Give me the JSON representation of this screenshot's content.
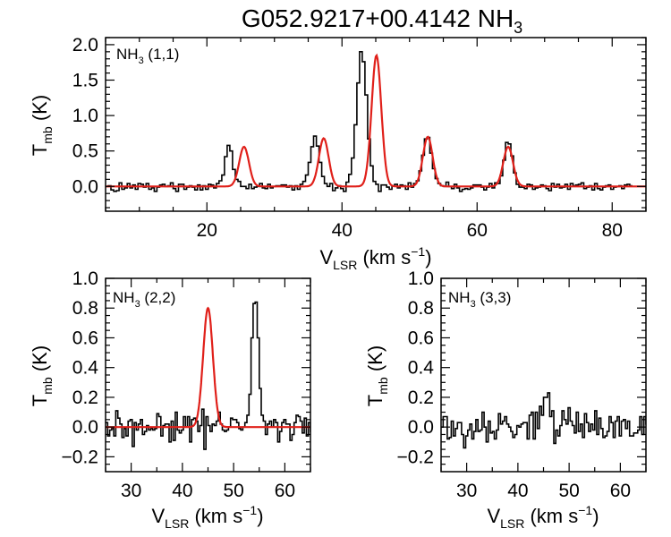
{
  "figure": {
    "title_main": "G052.9217+00.4142 NH",
    "title_sub": "3"
  },
  "colors": {
    "data": "#000000",
    "fit": "#e0201a",
    "frame": "#000000"
  },
  "chart_data": [
    {
      "type": "line",
      "panel_label": {
        "main": "NH",
        "sub": "3",
        "rest": " (1,1)"
      },
      "xlabel": {
        "main": "V",
        "sub": "LSR",
        "rest": " (km s",
        "sup": "−1",
        "close": ")"
      },
      "ylabel": {
        "main": "T",
        "sub": "mb",
        "rest": " (K)"
      },
      "xlim": [
        5,
        85
      ],
      "ylim": [
        -0.35,
        2.1
      ],
      "xticks": [
        20,
        40,
        60,
        80
      ],
      "xtick_labels": [
        "20",
        "40",
        "60",
        "80"
      ],
      "yticks": [
        0.0,
        0.5,
        1.0,
        1.5,
        2.0
      ],
      "ytick_labels": [
        "0.0",
        "0.5",
        "1.0",
        "1.5",
        "2.0"
      ],
      "grid": false,
      "series": [
        {
          "style": "step",
          "color": "#000000",
          "x_start": 5.0,
          "x_step": 0.4,
          "values": [
            0.0,
            0.01,
            -0.05,
            -0.07,
            -0.06,
            0.05,
            -0.04,
            -0.02,
            0.04,
            -0.02,
            0.02,
            -0.04,
            0.04,
            0.03,
            -0.01,
            0.04,
            -0.04,
            -0.02,
            -0.07,
            -0.01,
            0.02,
            0.03,
            -0.0,
            0.01,
            0.05,
            -0.03,
            -0.07,
            0.03,
            0.03,
            -0.04,
            -0.01,
            0.01,
            -0.01,
            -0.05,
            0.02,
            -0.05,
            0.01,
            -0.04,
            0.03,
            0.02,
            -0.02,
            0.04,
            0.08,
            0.16,
            0.42,
            0.58,
            0.5,
            0.24,
            0.1,
            0.07,
            -0.0,
            -0.0,
            -0.03,
            0.03,
            -0.03,
            -0.01,
            0.0,
            0.04,
            -0.02,
            -0.03,
            0.03,
            -0.02,
            0.0,
            0.01,
            0.01,
            0.02,
            0.02,
            -0.01,
            0.01,
            -0.05,
            0.01,
            -0.04,
            0.03,
            0.07,
            0.16,
            0.34,
            0.56,
            0.71,
            0.57,
            0.34,
            0.14,
            0.04,
            -0.0,
            0.04,
            -0.06,
            -0.02,
            0.01,
            -0.03,
            -0.07,
            0.06,
            0.17,
            0.4,
            0.87,
            1.46,
            1.9,
            1.76,
            1.29,
            0.67,
            0.29,
            0.07,
            0.03,
            -0.07,
            0.02,
            0.02,
            -0.01,
            -0.04,
            0.01,
            0.03,
            -0.02,
            0.02,
            0.01,
            -0.04,
            0.05,
            -0.01,
            0.04,
            0.08,
            0.22,
            0.44,
            0.67,
            0.69,
            0.47,
            0.25,
            0.11,
            0.04,
            0.01,
            -0.0,
            0.06,
            0.0,
            -0.03,
            0.03,
            -0.02,
            -0.07,
            -0.04,
            -0.03,
            -0.04,
            -0.02,
            0.02,
            0.02,
            0.02,
            -0.01,
            -0.05,
            -0.01,
            0.04,
            -0.02,
            0.05,
            0.04,
            0.15,
            0.37,
            0.62,
            0.6,
            0.43,
            0.19,
            0.03,
            -0.01,
            -0.01,
            -0.03,
            0.03,
            0.02,
            -0.04,
            -0.02,
            -0.01,
            0.02,
            0.01,
            -0.03,
            -0.06,
            0.04,
            -0.01,
            0.03,
            -0.02,
            -0.01,
            0.03,
            -0.04,
            0.04,
            0.01,
            0.02,
            0.03,
            0.05,
            -0.03,
            -0.01,
            0.01,
            -0.05,
            0.04,
            -0.03,
            -0.05,
            -0.01,
            0.01,
            0.02,
            -0.04,
            -0.01,
            0.0,
            0.01,
            -0.03,
            0.02,
            0.03,
            0.01
          ]
        },
        {
          "style": "gaussian",
          "color": "#e0201a",
          "baseline": 0.0,
          "components": [
            {
              "center": 25.5,
              "amp": 0.56,
              "sigma": 0.72
            },
            {
              "center": 37.3,
              "amp": 0.68,
              "sigma": 0.72
            },
            {
              "center": 45.1,
              "amp": 1.85,
              "sigma": 0.72
            },
            {
              "center": 52.7,
              "amp": 0.7,
              "sigma": 0.72
            },
            {
              "center": 64.6,
              "amp": 0.56,
              "sigma": 0.72
            }
          ]
        }
      ]
    },
    {
      "type": "line",
      "panel_label": {
        "main": "NH",
        "sub": "3",
        "rest": " (2,2)"
      },
      "xlabel": {
        "main": "V",
        "sub": "LSR",
        "rest": " (km s",
        "sup": "−1",
        "close": ")"
      },
      "ylabel": {
        "main": "T",
        "sub": "mb",
        "rest": " (K)"
      },
      "xlim": [
        25,
        65
      ],
      "ylim": [
        -0.3,
        1.0
      ],
      "xticks": [
        30,
        40,
        50,
        60
      ],
      "xtick_labels": [
        "30",
        "40",
        "50",
        "60"
      ],
      "yticks": [
        -0.2,
        0.0,
        0.2,
        0.4,
        0.6,
        0.8,
        1.0
      ],
      "ytick_labels": [
        "−0.2",
        "0.0",
        "0.2",
        "0.4",
        "0.6",
        "0.8",
        "1.0"
      ],
      "grid": false,
      "series": [
        {
          "style": "step",
          "color": "#000000",
          "x_start": 25.0,
          "x_step": 0.4,
          "values": [
            0.03,
            -0.06,
            -0.02,
            -0.01,
            -0.06,
            0.11,
            0.06,
            0.02,
            -0.07,
            -0.01,
            -0.06,
            0.04,
            0.05,
            -0.13,
            0.03,
            -0.02,
            0.02,
            0.05,
            -0.05,
            -0.03,
            0.01,
            -0.02,
            -0.01,
            -0.02,
            -0.01,
            0.09,
            0.07,
            -0.06,
            0.01,
            0.02,
            0.02,
            -0.1,
            0.04,
            -0.09,
            0.1,
            -0.02,
            -0.04,
            -0.02,
            0.07,
            0.0,
            0.07,
            -0.1,
            0.05,
            0.06,
            0.04,
            -0.03,
            0.01,
            0.12,
            -0.15,
            0.07,
            0.01,
            -0.03,
            0.02,
            0.01,
            0.04,
            0.1,
            0.02,
            -0.02,
            -0.03,
            -0.02,
            0.0,
            0.06,
            0.05,
            0.05,
            0.03,
            -0.01,
            -0.02,
            -0.0,
            0.03,
            0.08,
            0.22,
            0.6,
            0.83,
            0.84,
            0.6,
            0.26,
            0.08,
            0.04,
            -0.05,
            0.02,
            0.04,
            -0.0,
            0.05,
            0.03,
            -0.1,
            -0.03,
            0.03,
            0.05,
            0.02,
            0.02,
            -0.09,
            -0.05,
            0.03,
            0.08,
            0.07,
            0.04,
            -0.04,
            0.06,
            -0.06,
            0.03,
            -0.03,
            0.01
          ]
        },
        {
          "style": "gaussian",
          "color": "#e0201a",
          "baseline": 0.0,
          "components": [
            {
              "center": 45.0,
              "amp": 0.8,
              "sigma": 0.95
            }
          ]
        }
      ]
    },
    {
      "type": "line",
      "panel_label": {
        "main": "NH",
        "sub": "3",
        "rest": " (3,3)"
      },
      "xlabel": {
        "main": "V",
        "sub": "LSR",
        "rest": " (km s",
        "sup": "−1",
        "close": ")"
      },
      "ylabel": {
        "main": "T",
        "sub": "mb",
        "rest": " (K)"
      },
      "xlim": [
        25,
        65
      ],
      "ylim": [
        -0.3,
        1.0
      ],
      "xticks": [
        30,
        40,
        50,
        60
      ],
      "xtick_labels": [
        "30",
        "40",
        "50",
        "60"
      ],
      "yticks": [
        -0.2,
        0.0,
        0.2,
        0.4,
        0.6,
        0.8,
        1.0
      ],
      "ytick_labels": [
        "−0.2",
        "0.0",
        "0.2",
        "0.4",
        "0.6",
        "0.8",
        "1.0"
      ],
      "grid": false,
      "series": [
        {
          "style": "step",
          "color": "#000000",
          "x_start": 25.0,
          "x_step": 0.4,
          "values": [
            -0.0,
            0.07,
            0.07,
            -0.08,
            -0.07,
            0.04,
            -0.06,
            -0.01,
            0.03,
            0.03,
            -0.05,
            -0.14,
            -0.06,
            -0.02,
            0.02,
            -0.08,
            -0.03,
            0.05,
            -0.03,
            -0.02,
            0.1,
            -0.0,
            -0.1,
            0.04,
            -0.04,
            -0.03,
            -0.08,
            -0.02,
            0.09,
            0.02,
            0.04,
            0.07,
            0.02,
            0.0,
            -0.03,
            -0.07,
            -0.05,
            0.01,
            -0.0,
            0.02,
            0.03,
            0.03,
            -0.08,
            0.08,
            0.1,
            -0.08,
            0.1,
            -0.01,
            0.14,
            0.08,
            0.2,
            0.2,
            0.23,
            0.07,
            0.11,
            -0.11,
            -0.02,
            -0.06,
            0.01,
            0.11,
            0.05,
            0.02,
            0.13,
            0.04,
            0.01,
            -0.04,
            0.1,
            -0.03,
            0.02,
            -0.07,
            0.09,
            0.03,
            -0.03,
            0.02,
            -0.02,
            0.11,
            -0.05,
            0.06,
            -0.01,
            -0.07,
            -0.06,
            -0.03,
            0.07,
            0.03,
            -0.07,
            0.04,
            0.07,
            -0.06,
            0.04,
            0.05,
            -0.01,
            0.04,
            -0.06,
            -0.06,
            -0.04,
            -0.04,
            -0.02,
            0.07,
            -0.05,
            0.07,
            0.02
          ]
        }
      ]
    }
  ]
}
